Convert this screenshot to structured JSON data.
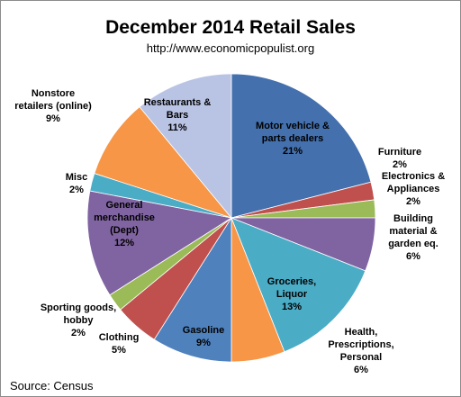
{
  "chart_data": {
    "type": "pie",
    "title": "December 2014 Retail Sales",
    "subtitle": "http://www.economicpopulist.org",
    "source": "Source:  Census",
    "slices": [
      {
        "name": "Motor vehicle & parts dealers",
        "label_lines": [
          "Motor vehicle &",
          "parts dealers",
          "21%"
        ],
        "value": 21,
        "color": "#4470ad"
      },
      {
        "name": "Furniture",
        "label_lines": [
          "Furniture",
          "2%"
        ],
        "value": 2,
        "color": "#c0504d"
      },
      {
        "name": "Electronics & Appliances",
        "label_lines": [
          "Electronics &",
          "Appliances",
          "2%"
        ],
        "value": 2,
        "color": "#9bbb59"
      },
      {
        "name": "Building material & garden eq.",
        "label_lines": [
          "Building",
          "material &",
          "garden eq.",
          "6%"
        ],
        "value": 6,
        "color": "#8064a2"
      },
      {
        "name": "Groceries, Liquor",
        "label_lines": [
          "Groceries,",
          "Liquor",
          "13%"
        ],
        "value": 13,
        "color": "#4bacc6"
      },
      {
        "name": "Health, Prescriptions, Personal",
        "label_lines": [
          "Health,",
          "Prescriptions,",
          "Personal",
          "6%"
        ],
        "value": 6,
        "color": "#f79646"
      },
      {
        "name": "Gasoline",
        "label_lines": [
          "Gasoline",
          "9%"
        ],
        "value": 9,
        "color": "#4f81bd"
      },
      {
        "name": "Clothing",
        "label_lines": [
          "Clothing",
          "5%"
        ],
        "value": 5,
        "color": "#c0504d"
      },
      {
        "name": "Sporting goods, hobby",
        "label_lines": [
          "Sporting goods,",
          "hobby",
          "2%"
        ],
        "value": 2,
        "color": "#9bbb59"
      },
      {
        "name": "General merchandise (Dept)",
        "label_lines": [
          "General",
          "merchandise",
          "(Dept)",
          "12%"
        ],
        "value": 12,
        "color": "#8064a2"
      },
      {
        "name": "Misc",
        "label_lines": [
          "Misc",
          "2%"
        ],
        "value": 2,
        "color": "#4bacc6"
      },
      {
        "name": "Nonstore retailers (online)",
        "label_lines": [
          "Nonstore",
          "retailers (online)",
          "9%"
        ],
        "value": 9,
        "color": "#f79646"
      },
      {
        "name": "Restaurants & Bars",
        "label_lines": [
          "Restaurants &",
          "Bars",
          "11%"
        ],
        "value": 11,
        "color": "#b9c3e4"
      }
    ]
  }
}
